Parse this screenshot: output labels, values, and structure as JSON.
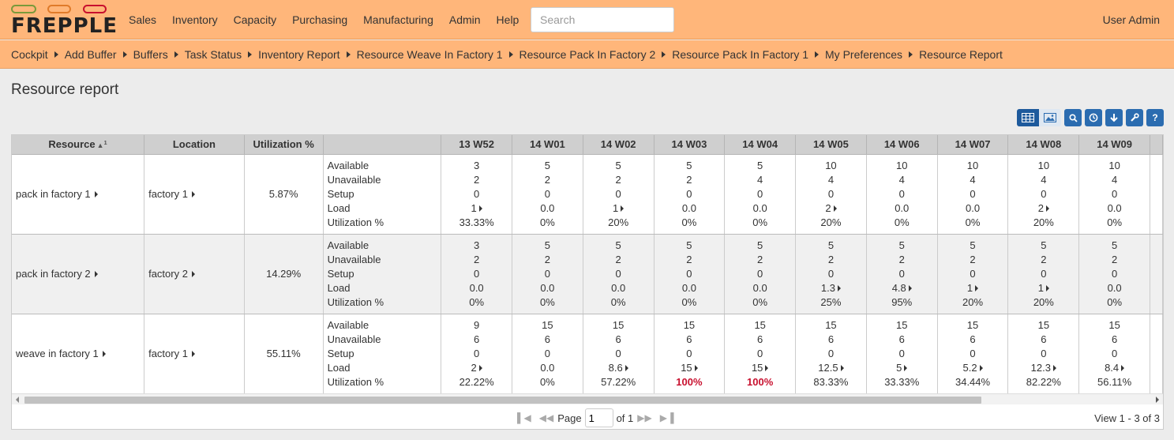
{
  "app": {
    "logo": "FREPPLE",
    "user": "User Admin"
  },
  "menu": [
    "Sales",
    "Inventory",
    "Capacity",
    "Purchasing",
    "Manufacturing",
    "Admin",
    "Help"
  ],
  "search": {
    "placeholder": "Search"
  },
  "breadcrumbs": [
    "Cockpit",
    "Add Buffer",
    "Buffers",
    "Task Status",
    "Inventory Report",
    "Resource Weave In Factory 1",
    "Resource Pack In Factory 2",
    "Resource Pack In Factory 1",
    "My Preferences",
    "Resource Report"
  ],
  "page": {
    "title": "Resource report"
  },
  "toolbar": {
    "icons": [
      "table-view-icon",
      "graph-view-icon",
      "search-icon",
      "time-icon",
      "download-icon",
      "wrench-icon",
      "help-icon"
    ]
  },
  "table": {
    "headers": {
      "resource": "Resource",
      "sort_index": "1",
      "location": "Location",
      "utilization": "Utilization %"
    },
    "weeks": [
      "13 W52",
      "14 W01",
      "14 W02",
      "14 W03",
      "14 W04",
      "14 W05",
      "14 W06",
      "14 W07",
      "14 W08",
      "14 W09"
    ],
    "metric_labels": [
      "Available",
      "Unavailable",
      "Setup",
      "Load",
      "Utilization %"
    ],
    "rows": [
      {
        "resource": "pack in factory 1",
        "location": "factory 1",
        "utilization": "5.87%",
        "cells": [
          [
            "3",
            "2",
            "0",
            "1",
            "33.33%"
          ],
          [
            "5",
            "2",
            "0",
            "0.0",
            "0%"
          ],
          [
            "5",
            "2",
            "0",
            "1",
            "20%"
          ],
          [
            "5",
            "2",
            "0",
            "0.0",
            "0%"
          ],
          [
            "5",
            "4",
            "0",
            "0.0",
            "0%"
          ],
          [
            "10",
            "4",
            "0",
            "2",
            "20%"
          ],
          [
            "10",
            "4",
            "0",
            "0.0",
            "0%"
          ],
          [
            "10",
            "4",
            "0",
            "0.0",
            "0%"
          ],
          [
            "10",
            "4",
            "0",
            "2",
            "20%"
          ],
          [
            "10",
            "4",
            "0",
            "0.0",
            "0%"
          ]
        ]
      },
      {
        "resource": "pack in factory 2",
        "location": "factory 2",
        "utilization": "14.29%",
        "cells": [
          [
            "3",
            "2",
            "0",
            "0.0",
            "0%"
          ],
          [
            "5",
            "2",
            "0",
            "0.0",
            "0%"
          ],
          [
            "5",
            "2",
            "0",
            "0.0",
            "0%"
          ],
          [
            "5",
            "2",
            "0",
            "0.0",
            "0%"
          ],
          [
            "5",
            "2",
            "0",
            "0.0",
            "0%"
          ],
          [
            "5",
            "2",
            "0",
            "1.3",
            "25%"
          ],
          [
            "5",
            "2",
            "0",
            "4.8",
            "95%"
          ],
          [
            "5",
            "2",
            "0",
            "1",
            "20%"
          ],
          [
            "5",
            "2",
            "0",
            "1",
            "20%"
          ],
          [
            "5",
            "2",
            "0",
            "0.0",
            "0%"
          ]
        ]
      },
      {
        "resource": "weave in factory 1",
        "location": "factory 1",
        "utilization": "55.11%",
        "cells": [
          [
            "9",
            "6",
            "0",
            "2",
            "22.22%"
          ],
          [
            "15",
            "6",
            "0",
            "0.0",
            "0%"
          ],
          [
            "15",
            "6",
            "0",
            "8.6",
            "57.22%"
          ],
          [
            "15",
            "6",
            "0",
            "15",
            "100%"
          ],
          [
            "15",
            "6",
            "0",
            "15",
            "100%"
          ],
          [
            "15",
            "6",
            "0",
            "12.5",
            "83.33%"
          ],
          [
            "15",
            "6",
            "0",
            "5",
            "33.33%"
          ],
          [
            "15",
            "6",
            "0",
            "5.2",
            "34.44%"
          ],
          [
            "15",
            "6",
            "0",
            "12.3",
            "82.22%"
          ],
          [
            "15",
            "6",
            "0",
            "8.4",
            "56.11%"
          ]
        ]
      }
    ]
  },
  "pager": {
    "page_label": "Page",
    "page_value": "1",
    "of_label": "of 1",
    "view_text": "View 1 - 3 of 3"
  },
  "colors": {
    "header_bg": "#ffb67a",
    "overload_red": "#c8102e",
    "toolbar_blue": "#2b6cb0"
  }
}
